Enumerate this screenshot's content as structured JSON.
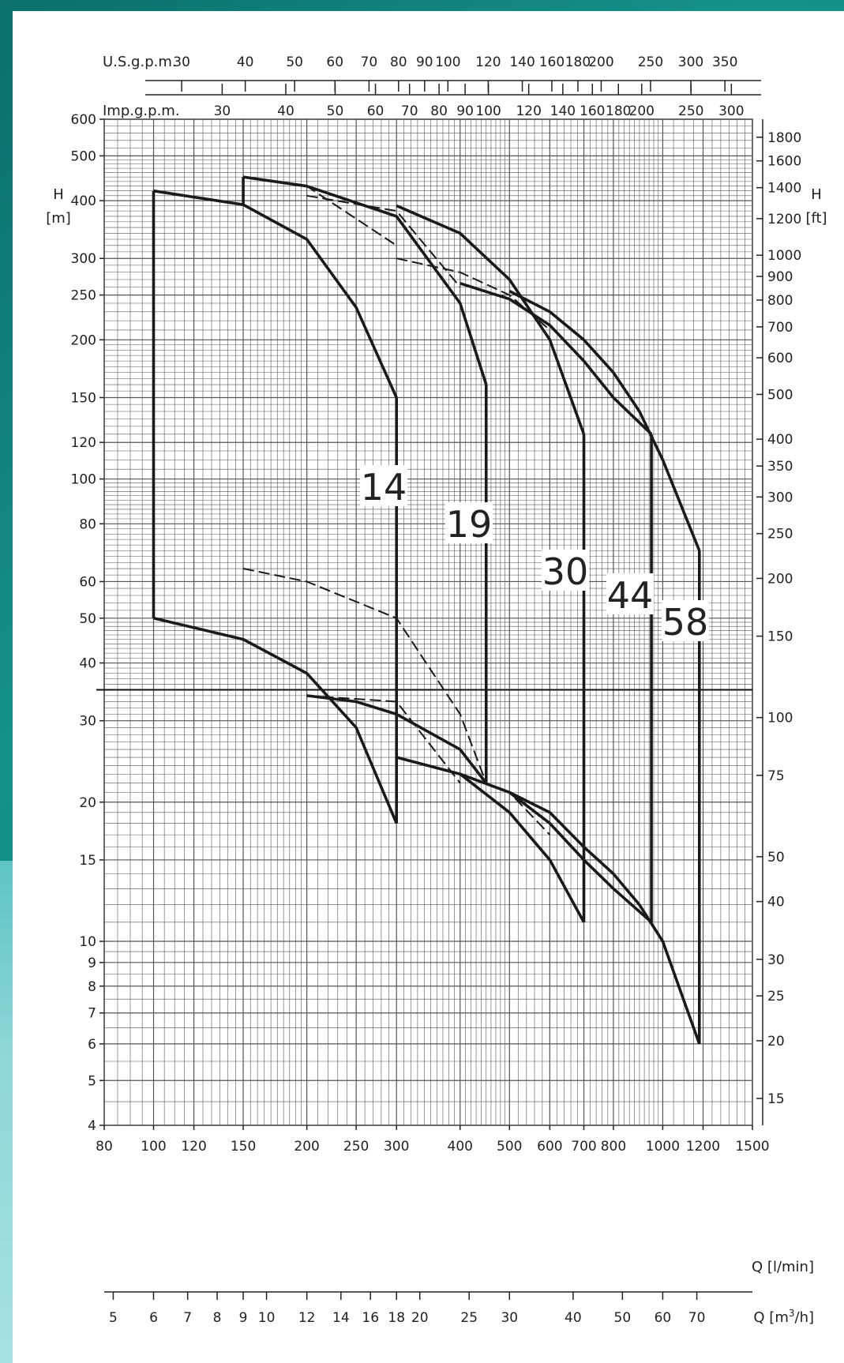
{
  "chart_data": {
    "type": "line",
    "title": "",
    "x_axes": {
      "q_lmin": {
        "label": "Q [l/min]",
        "scale": "log",
        "range": [
          80,
          1500
        ],
        "ticks": [
          80,
          100,
          120,
          150,
          200,
          250,
          300,
          400,
          500,
          600,
          700,
          800,
          1000,
          1200,
          1500
        ]
      },
      "q_m3h": {
        "label": "Q [m 3/h]",
        "label_main": "Q [m",
        "label_sup": "3",
        "label_end": "/h]",
        "scale": "log",
        "ticks": [
          5,
          6,
          7,
          8,
          9,
          10,
          12,
          14,
          16,
          18,
          20,
          25,
          30,
          40,
          50,
          60,
          70
        ]
      },
      "us_gpm": {
        "label": "U.S.g.p.m.",
        "scale": "log",
        "ticks": [
          30,
          40,
          50,
          60,
          70,
          80,
          90,
          100,
          120,
          140,
          160,
          180,
          200,
          250,
          300,
          350
        ]
      },
      "imp_gpm": {
        "label": "Imp.g.p.m.",
        "scale": "log",
        "ticks": [
          30,
          40,
          50,
          60,
          70,
          80,
          90,
          100,
          120,
          140,
          160,
          180,
          200,
          250,
          300
        ]
      }
    },
    "y_axes": {
      "h_m": {
        "label_top": "H",
        "label_unit": "[m]",
        "scale": "log",
        "range": [
          4,
          600
        ],
        "ticks": [
          4,
          5,
          6,
          7,
          8,
          9,
          10,
          15,
          20,
          30,
          40,
          50,
          60,
          80,
          100,
          120,
          150,
          200,
          250,
          300,
          400,
          500,
          600
        ]
      },
      "h_ft": {
        "label_top": "H",
        "label_unit": "[ft]",
        "scale": "log",
        "ticks": [
          15,
          20,
          25,
          30,
          40,
          50,
          75,
          100,
          150,
          200,
          250,
          300,
          350,
          400,
          500,
          600,
          700,
          800,
          900,
          1000,
          1200,
          1400,
          1600,
          1800
        ]
      }
    },
    "grid": true,
    "reference_line_h": 35,
    "series": [
      {
        "name": "14",
        "upper": {
          "style": "solid",
          "x": [
            100,
            150,
            200,
            250,
            300
          ],
          "y": [
            420,
            392,
            330,
            235,
            150
          ],
          "start_y": 50
        },
        "lower": {
          "style": "solid",
          "x": [
            100,
            150,
            200,
            250,
            300
          ],
          "y": [
            50,
            45,
            38,
            29,
            18
          ]
        },
        "inner_upper": {
          "style": "dashed",
          "x": [
            150,
            200,
            300
          ],
          "y": [
            450,
            430,
            320
          ]
        },
        "inner_lower": {
          "style": "dashed",
          "x": [
            150,
            200,
            300,
            400,
            450
          ],
          "y": [
            64,
            60,
            50,
            31,
            22
          ]
        }
      },
      {
        "name": "19",
        "upper": {
          "style": "solid",
          "x": [
            150,
            200,
            300,
            400,
            450
          ],
          "y": [
            450,
            430,
            370,
            240,
            160
          ],
          "start_y": 390
        },
        "lower": {
          "style": "solid",
          "x": [
            200,
            250,
            300,
            400,
            450
          ],
          "y": [
            34,
            33,
            31,
            26,
            22
          ]
        },
        "inner_upper": {
          "style": "dashed",
          "x": [
            200,
            300,
            400
          ],
          "y": [
            410,
            380,
            260
          ]
        },
        "inner_lower": {
          "style": "dashed",
          "x": [
            200,
            300,
            400
          ],
          "y": [
            34,
            33,
            22
          ]
        }
      },
      {
        "name": "30",
        "upper": {
          "style": "solid",
          "x": [
            300,
            400,
            500,
            600,
            700
          ],
          "y": [
            390,
            340,
            270,
            200,
            125
          ]
        },
        "lower": {
          "style": "solid",
          "x": [
            300,
            400,
            500,
            600,
            700
          ],
          "y": [
            25,
            23,
            19,
            15,
            11
          ]
        },
        "inner_upper": {
          "style": "dashed",
          "x": [
            300,
            400,
            500,
            600
          ],
          "y": [
            300,
            280,
            250,
            210
          ]
        },
        "inner_lower": {
          "style": "dashed",
          "x": [
            300,
            400,
            500,
            600
          ],
          "y": [
            25,
            23,
            21,
            17
          ]
        }
      },
      {
        "name": "44",
        "upper": {
          "style": "solid",
          "x": [
            400,
            500,
            600,
            700,
            800,
            950
          ],
          "y": [
            265,
            245,
            215,
            180,
            150,
            125
          ]
        },
        "lower": {
          "style": "solid",
          "x": [
            400,
            500,
            600,
            700,
            800,
            950
          ],
          "y": [
            23,
            21,
            18,
            15,
            13,
            11
          ]
        }
      },
      {
        "name": "58",
        "upper": {
          "style": "solid",
          "x": [
            500,
            600,
            700,
            800,
            900,
            1000,
            1180
          ],
          "y": [
            255,
            230,
            200,
            170,
            140,
            110,
            70
          ]
        },
        "lower": {
          "style": "solid",
          "x": [
            500,
            600,
            700,
            800,
            900,
            1000,
            1180
          ],
          "y": [
            21,
            19,
            16,
            14,
            12,
            10,
            6
          ]
        }
      }
    ]
  }
}
